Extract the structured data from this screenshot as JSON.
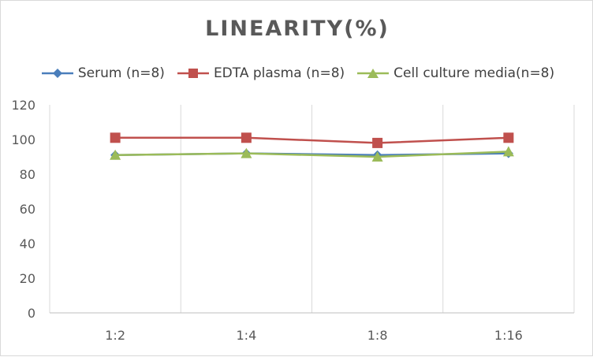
{
  "chart_data": {
    "type": "line",
    "title": "LINEARITY(%)",
    "xlabel": "",
    "ylabel": "",
    "categories": [
      "1:2",
      "1:4",
      "1:8",
      "1:16"
    ],
    "ylim": [
      0,
      120
    ],
    "yticks": [
      0,
      20,
      40,
      60,
      80,
      100,
      120
    ],
    "grid": "vertical",
    "legend_position": "top",
    "series": [
      {
        "name": "Serum (n=8)",
        "values": [
          91,
          92,
          91,
          92
        ],
        "color": "#4a7ebb",
        "marker": "diamond"
      },
      {
        "name": "EDTA plasma (n=8)",
        "values": [
          101,
          101,
          98,
          101
        ],
        "color": "#c0504d",
        "marker": "square"
      },
      {
        "name": "Cell culture media(n=8)",
        "values": [
          91,
          92,
          90,
          93
        ],
        "color": "#9bbb59",
        "marker": "triangle"
      }
    ]
  }
}
